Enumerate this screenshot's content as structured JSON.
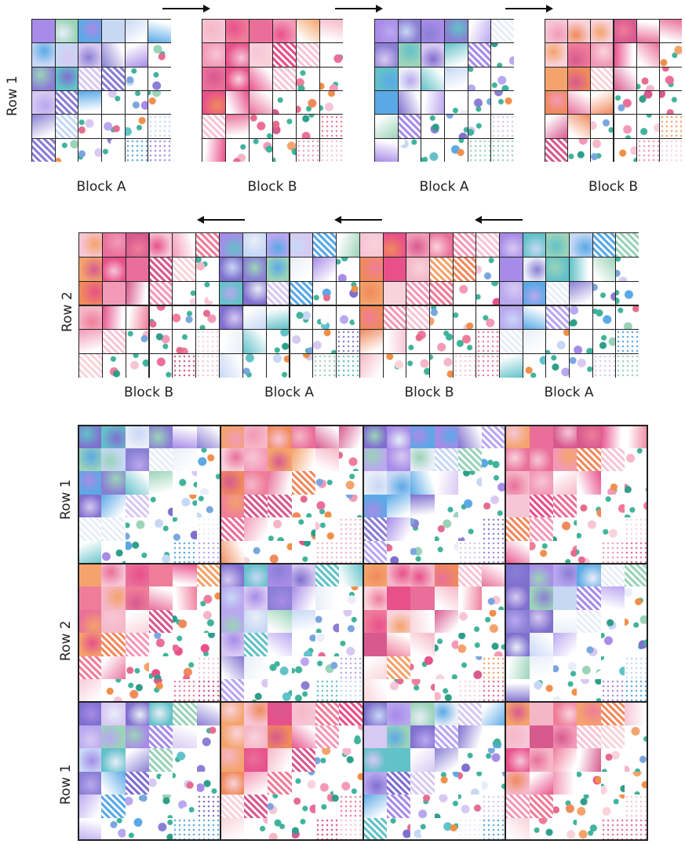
{
  "row1": {
    "label": "Row 1",
    "blocks": [
      "A",
      "B",
      "A",
      "B"
    ],
    "captions": [
      "Block A",
      "Block B",
      "Block A",
      "Block B"
    ],
    "arrow_direction": "right"
  },
  "row2": {
    "label": "Row 2",
    "blocks": [
      "B",
      "A",
      "B",
      "A"
    ],
    "captions": [
      "Block B",
      "Block A",
      "Block B",
      "Block A"
    ],
    "arrow_direction": "left"
  },
  "quilt": {
    "row_labels": [
      "Row 1",
      "Row 2",
      "Row 1"
    ]
  },
  "palettes": {
    "A": {
      "name": "blue-purple watercolor block",
      "colors": [
        "#8a7fd4",
        "#5aa9e6",
        "#a78be8",
        "#c7d8f5",
        "#7f6fcf",
        "#b9a7f0",
        "#62c1c9",
        "#9bd3b9",
        "#e9eef8",
        "#d8c9f2"
      ]
    },
    "B": {
      "name": "pink-coral watercolor block",
      "colors": [
        "#e8508a",
        "#f39ab8",
        "#f7c6d6",
        "#ef7d9a",
        "#f4a36c",
        "#f08a5d",
        "#e96f9a",
        "#f9d3dc",
        "#d75a8f",
        "#f5b7c8"
      ]
    },
    "accents": [
      "#3fb39b",
      "#2e9e8a",
      "#e56b8f",
      "#7aa6e0",
      "#f08f4a",
      "#ffffff"
    ]
  }
}
